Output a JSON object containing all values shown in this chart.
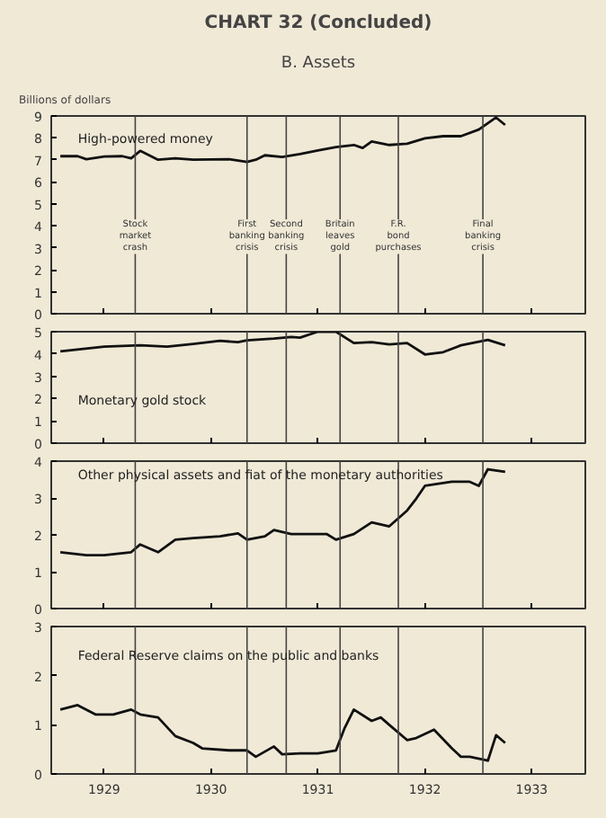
{
  "chart_data": [
    {
      "type": "line",
      "title": "CHART 32 (Concluded)",
      "subtitle": "B. Assets",
      "ylabel": "Billions of dollars",
      "x": [
        "1929-02",
        "1929-04",
        "1929-05",
        "1929-07",
        "1929-09",
        "1929-10",
        "1929-11",
        "1930-01",
        "1930-03",
        "1930-05",
        "1930-09",
        "1930-11",
        "1930-12",
        "1931-01",
        "1931-03",
        "1931-05",
        "1931-07",
        "1931-09",
        "1931-11",
        "1931-12",
        "1932-01",
        "1932-03",
        "1932-05",
        "1932-07",
        "1932-09",
        "1932-11",
        "1933-01",
        "1933-03",
        "1933-04"
      ],
      "series": [
        {
          "name": "High-powered money",
          "color": "#111111",
          "values": [
            7.17,
            7.17,
            7.03,
            7.15,
            7.17,
            7.07,
            7.41,
            7.01,
            7.07,
            7.01,
            7.03,
            6.91,
            7.01,
            7.21,
            7.13,
            7.27,
            7.43,
            7.58,
            7.68,
            7.54,
            7.84,
            7.68,
            7.74,
            7.98,
            8.08,
            8.08,
            8.38,
            8.93,
            8.59
          ]
        }
      ],
      "xlim": [
        "1929-01-01",
        "1933-12-31"
      ],
      "xticks": [
        {
          "value": "1929-07-01",
          "label": null
        },
        {
          "value": "1930-07-01",
          "label": null
        },
        {
          "value": "1931-07-01",
          "label": null
        },
        {
          "value": "1932-07-01",
          "label": null
        },
        {
          "value": "1933-07-01",
          "label": null
        }
      ],
      "ylim": [
        0,
        9
      ],
      "yticks": [
        0,
        1,
        2,
        3,
        4,
        5,
        6,
        7,
        8,
        9
      ],
      "tick_labels": "y",
      "grid": false,
      "legend": false,
      "ref_lines": [
        {
          "axis": "x",
          "value": "1929-10-15",
          "label": "Stock market crash"
        },
        {
          "axis": "x",
          "value": "1930-11-01",
          "label": "First banking crisis"
        },
        {
          "axis": "x",
          "value": "1931-03-15",
          "label": "Second banking crisis"
        },
        {
          "axis": "x",
          "value": "1931-09-15",
          "label": "Britain leaves gold"
        },
        {
          "axis": "x",
          "value": "1932-04-01",
          "label": "F.R. bond purchases"
        },
        {
          "axis": "x",
          "value": "1933-01-15",
          "label": "Final banking crisis"
        }
      ]
    },
    {
      "type": "line",
      "x": [
        "1929-02",
        "1929-07",
        "1929-11",
        "1930-02",
        "1930-05",
        "1930-08",
        "1930-10",
        "1930-11",
        "1931-02",
        "1931-04",
        "1931-05",
        "1931-07",
        "1931-09",
        "1931-11",
        "1932-01",
        "1932-03",
        "1932-05",
        "1932-07",
        "1932-09",
        "1932-11",
        "1933-02",
        "1933-04"
      ],
      "series": [
        {
          "name": "Monetary gold stock",
          "color": "#111111",
          "values": [
            4.12,
            4.33,
            4.39,
            4.33,
            4.45,
            4.59,
            4.53,
            4.61,
            4.69,
            4.76,
            4.73,
            5.0,
            5.0,
            4.49,
            4.53,
            4.43,
            4.49,
            3.98,
            4.08,
            4.39,
            4.63,
            4.39
          ]
        }
      ],
      "xlim": [
        "1929-01-01",
        "1933-12-31"
      ],
      "xticks": [
        {
          "value": "1929-07-01",
          "label": null
        },
        {
          "value": "1930-07-01",
          "label": null
        },
        {
          "value": "1931-07-01",
          "label": null
        },
        {
          "value": "1932-07-01",
          "label": null
        },
        {
          "value": "1933-07-01",
          "label": null
        }
      ],
      "ylim": [
        0,
        5
      ],
      "yticks": [
        0,
        1,
        2,
        3,
        4,
        5
      ],
      "tick_labels": "y",
      "grid": false,
      "legend": false,
      "ref_lines": [
        {
          "axis": "x",
          "value": "1929-10-15"
        },
        {
          "axis": "x",
          "value": "1930-11-01"
        },
        {
          "axis": "x",
          "value": "1931-03-15"
        },
        {
          "axis": "x",
          "value": "1931-09-15"
        },
        {
          "axis": "x",
          "value": "1932-04-01"
        },
        {
          "axis": "x",
          "value": "1933-01-15"
        }
      ]
    },
    {
      "type": "line",
      "x": [
        "1929-02",
        "1929-05",
        "1929-07",
        "1929-10",
        "1929-11",
        "1930-01",
        "1930-03",
        "1930-05",
        "1930-08",
        "1930-10",
        "1930-11",
        "1931-01",
        "1931-02",
        "1931-04",
        "1931-06",
        "1931-08",
        "1931-09",
        "1931-11",
        "1932-01",
        "1932-03",
        "1932-05",
        "1932-06",
        "1932-07",
        "1932-10",
        "1932-12",
        "1933-01",
        "1933-02",
        "1933-04"
      ],
      "series": [
        {
          "name": "Other physical assets and fiat of the monetary authorities",
          "color": "#111111",
          "values": [
            1.53,
            1.45,
            1.45,
            1.53,
            1.74,
            1.53,
            1.87,
            1.91,
            1.96,
            2.04,
            1.87,
            1.96,
            2.13,
            2.02,
            2.02,
            2.02,
            1.87,
            2.02,
            2.34,
            2.23,
            2.66,
            2.98,
            3.33,
            3.44,
            3.44,
            3.33,
            3.78,
            3.71
          ]
        }
      ],
      "xlim": [
        "1929-01-01",
        "1933-12-31"
      ],
      "xticks": [
        {
          "value": "1929-07-01",
          "label": null
        },
        {
          "value": "1930-07-01",
          "label": null
        },
        {
          "value": "1931-07-01",
          "label": null
        },
        {
          "value": "1932-07-01",
          "label": null
        },
        {
          "value": "1933-07-01",
          "label": null
        }
      ],
      "ylim": [
        0,
        4
      ],
      "yticks": [
        0,
        1,
        2,
        3,
        4
      ],
      "tick_labels": "y",
      "grid": false,
      "legend": false,
      "ref_lines": [
        {
          "axis": "x",
          "value": "1929-10-15"
        },
        {
          "axis": "x",
          "value": "1930-11-01"
        },
        {
          "axis": "x",
          "value": "1931-03-15"
        },
        {
          "axis": "x",
          "value": "1931-09-15"
        },
        {
          "axis": "x",
          "value": "1932-04-01"
        },
        {
          "axis": "x",
          "value": "1933-01-15"
        }
      ]
    },
    {
      "type": "line",
      "x": [
        "1929-02",
        "1929-04",
        "1929-06",
        "1929-08",
        "1929-10",
        "1929-11",
        "1930-01",
        "1930-03",
        "1930-05",
        "1930-06",
        "1930-09",
        "1930-11",
        "1930-12",
        "1931-02",
        "1931-03",
        "1931-05",
        "1931-07",
        "1931-09",
        "1931-10",
        "1931-11",
        "1932-01",
        "1932-02",
        "1932-03",
        "1932-05",
        "1932-06",
        "1932-08",
        "1932-10",
        "1932-11",
        "1932-12",
        "1933-02",
        "1933-03",
        "1933-04"
      ],
      "series": [
        {
          "name": "Federal Reserve claims on the public and banks",
          "color": "#111111",
          "values": [
            1.31,
            1.4,
            1.21,
            1.21,
            1.31,
            1.21,
            1.15,
            0.77,
            0.63,
            0.52,
            0.48,
            0.48,
            0.35,
            0.56,
            0.4,
            0.42,
            0.42,
            0.48,
            0.94,
            1.31,
            1.08,
            1.15,
            1.0,
            0.69,
            0.73,
            0.9,
            0.52,
            0.35,
            0.35,
            0.27,
            0.79,
            0.63
          ]
        }
      ],
      "xlim": [
        "1929-01-01",
        "1933-12-31"
      ],
      "xticks": [
        {
          "value": "1929-07-01",
          "label": "1929"
        },
        {
          "value": "1930-07-01",
          "label": "1930"
        },
        {
          "value": "1931-07-01",
          "label": "1931"
        },
        {
          "value": "1932-07-01",
          "label": "1932"
        },
        {
          "value": "1933-07-01",
          "label": "1933"
        }
      ],
      "ylim": [
        0,
        3
      ],
      "yticks": [
        0,
        1,
        2,
        3
      ],
      "grid": false,
      "legend": false,
      "ref_lines": [
        {
          "axis": "x",
          "value": "1929-10-15"
        },
        {
          "axis": "x",
          "value": "1930-11-01"
        },
        {
          "axis": "x",
          "value": "1931-03-15"
        },
        {
          "axis": "x",
          "value": "1931-09-15"
        },
        {
          "axis": "x",
          "value": "1932-04-01"
        },
        {
          "axis": "x",
          "value": "1933-01-15"
        }
      ]
    }
  ]
}
